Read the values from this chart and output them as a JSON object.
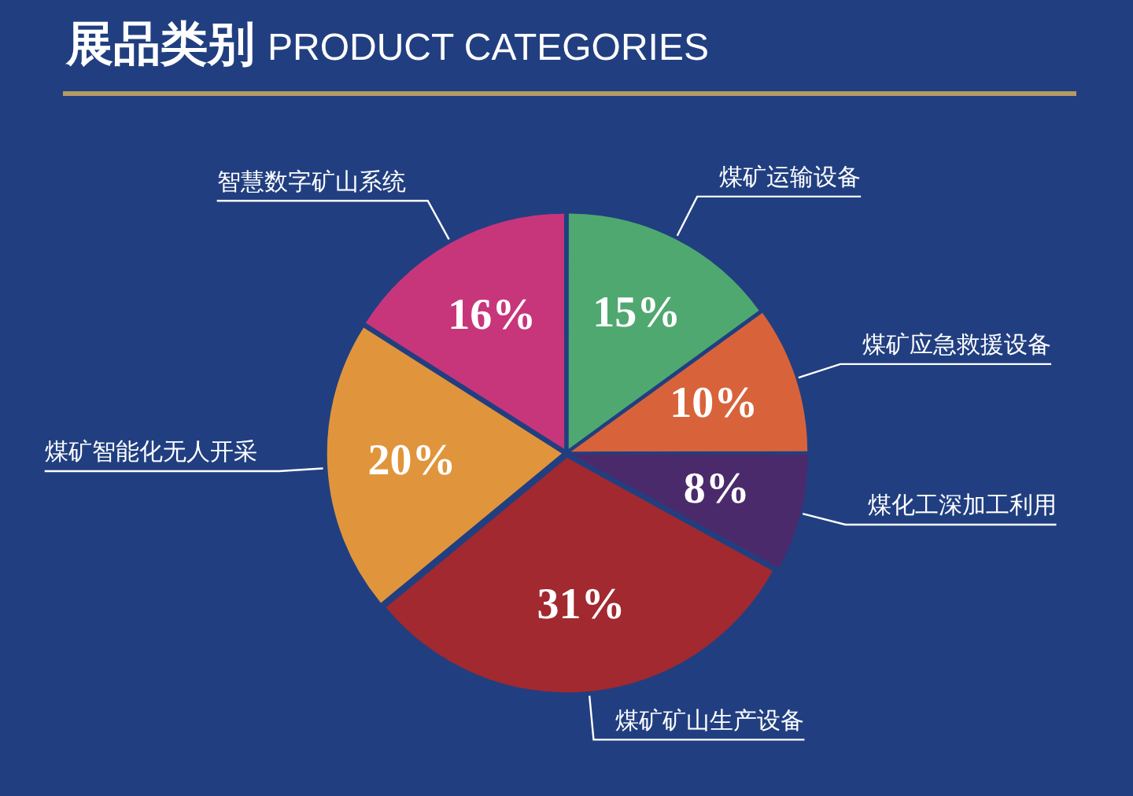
{
  "chart_data": {
    "type": "pie",
    "title": "展品类别",
    "subtitle": "PRODUCT CATEGORIES",
    "categories": [
      "煤矿运输设备",
      "煤矿应急救援设备",
      "煤化工深加工利用",
      "煤矿矿山生产设备",
      "煤矿智能化无人开采",
      "智慧数字矿山系统"
    ],
    "values": [
      15,
      10,
      8,
      31,
      20,
      16
    ],
    "colors": [
      "#4fa870",
      "#d8633a",
      "#4b2a6c",
      "#a1292f",
      "#e0953c",
      "#c7367b"
    ],
    "value_labels": [
      "15%",
      "10%",
      "8%",
      "31%",
      "20%",
      "16%"
    ]
  }
}
